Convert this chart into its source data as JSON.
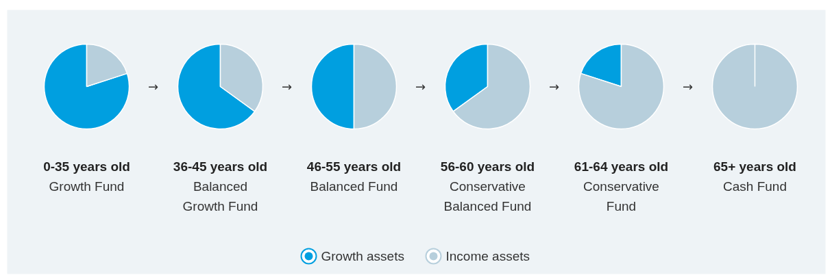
{
  "chart_data": [
    {
      "type": "pie",
      "title": "0-35 years old",
      "subtitle": "Growth Fund",
      "categories": [
        "Growth assets",
        "Income assets"
      ],
      "values": [
        80,
        20
      ],
      "colors": [
        "#009fe0",
        "#b7cfdc"
      ],
      "legend": "bottom",
      "annotations": [
        "→"
      ]
    },
    {
      "type": "pie",
      "title": "36-45 years old",
      "subtitle": "Balanced Growth Fund",
      "categories": [
        null,
        null
      ],
      "values": [
        65,
        35
      ],
      "colors": [
        "#009fe0",
        "#b7cfdc"
      ],
      "annotations": [
        "→"
      ]
    },
    {
      "type": "pie",
      "title": "46-55 years old",
      "subtitle": "Balanced Fund",
      "categories": [
        null,
        null
      ],
      "values": [
        50,
        50
      ],
      "colors": [
        "#009fe0",
        "#b7cfdc"
      ],
      "annotations": [
        "→"
      ]
    },
    {
      "type": "pie",
      "title": "56-60 years old",
      "subtitle": "Conservative Balanced Fund",
      "categories": [
        null,
        null
      ],
      "values": [
        35,
        65
      ],
      "colors": [
        "#009fe0",
        "#b7cfdc"
      ],
      "annotations": [
        "→"
      ]
    },
    {
      "type": "pie",
      "title": "61-64 years old",
      "subtitle": "Conservative Fund",
      "categories": [
        null,
        null
      ],
      "values": [
        20,
        80
      ],
      "colors": [
        "#009fe0",
        "#b7cfdc"
      ],
      "annotations": [
        "→"
      ]
    },
    {
      "type": "pie",
      "title": "65+ years old",
      "subtitle": "Cash Fund",
      "categories": [
        null,
        null
      ],
      "values": [
        0,
        100
      ],
      "colors": [
        "#009fe0",
        "#b7cfdc"
      ]
    }
  ]
}
